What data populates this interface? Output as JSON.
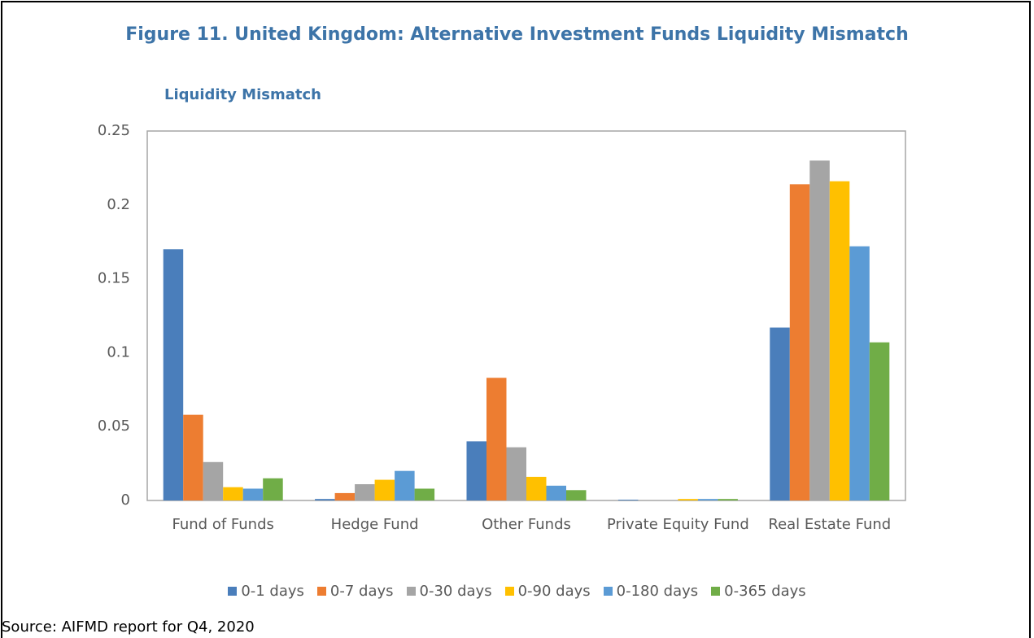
{
  "chart_data": {
    "type": "bar",
    "title": "Figure 11. United Kingdom: Alternative Investment Funds Liquidity Mismatch",
    "subtitle": "Liquidity Mismatch",
    "source": "Source: AIFMD report for Q4, 2020",
    "categories": [
      "Fund of Funds",
      "Hedge Fund",
      "Other Funds",
      "Private Equity Fund",
      "Real Estate Fund"
    ],
    "series": [
      {
        "name": "0-1 days",
        "color": "#4a7ebb",
        "values": [
          0.17,
          0.001,
          0.04,
          0.0005,
          0.117
        ]
      },
      {
        "name": "0-7 days",
        "color": "#ed7d31",
        "values": [
          0.058,
          0.005,
          0.083,
          0,
          0.214
        ]
      },
      {
        "name": "0-30 days",
        "color": "#a5a5a5",
        "values": [
          0.026,
          0.011,
          0.036,
          0,
          0.23
        ]
      },
      {
        "name": "0-90 days",
        "color": "#ffc000",
        "values": [
          0.009,
          0.014,
          0.016,
          0.001,
          0.216
        ]
      },
      {
        "name": "0-180 days",
        "color": "#5b9bd5",
        "values": [
          0.008,
          0.02,
          0.01,
          0.001,
          0.172
        ]
      },
      {
        "name": "0-365 days",
        "color": "#70ad47",
        "values": [
          0.015,
          0.008,
          0.007,
          0.001,
          0.107
        ]
      }
    ],
    "ylim": [
      0,
      0.25
    ],
    "yticks": [
      0,
      0.05,
      0.1,
      0.15,
      0.2,
      0.25
    ],
    "grid": false,
    "legend": "bottom"
  }
}
